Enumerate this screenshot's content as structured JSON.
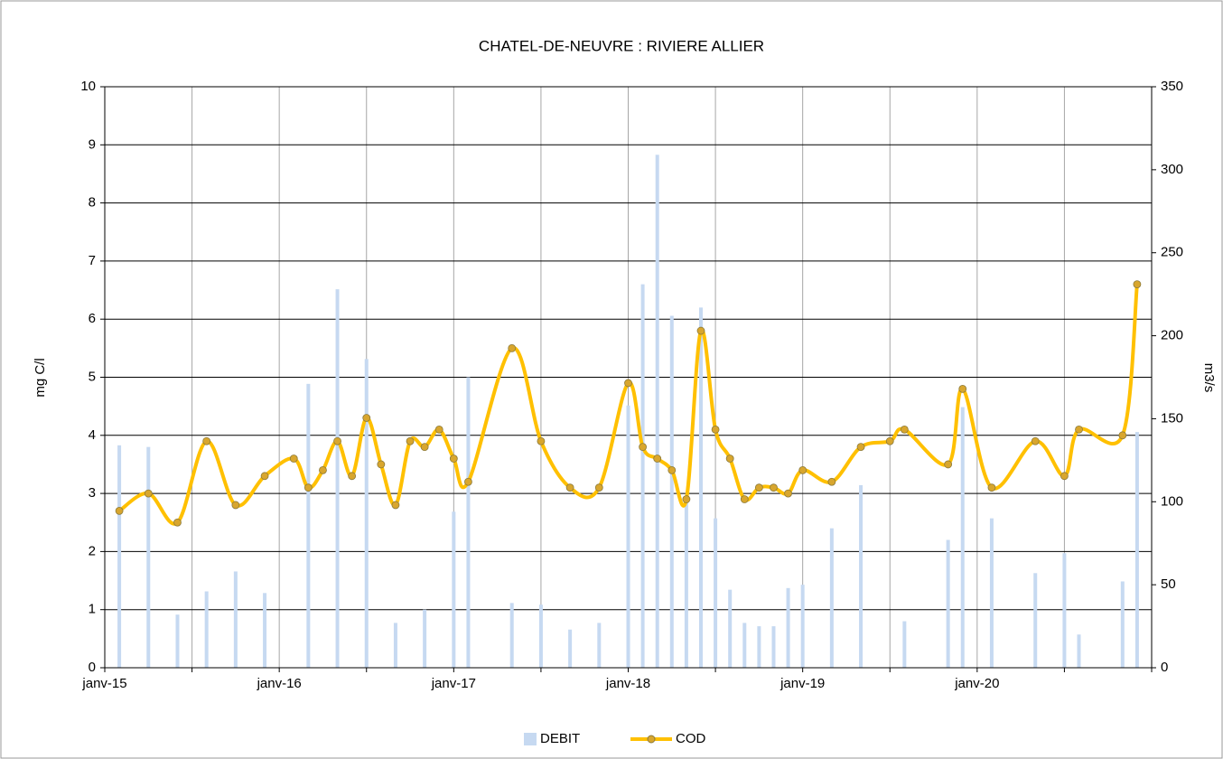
{
  "chart_data": {
    "type": "bar-line",
    "title": "CHATEL-DE-NEUVRE  : RIVIERE  ALLIER",
    "y_label": "mg C/l",
    "y2_label": "m3/s",
    "xlim": [
      "2015-01",
      "2021-01"
    ],
    "xticks": [
      {
        "value": "2015-01",
        "label": "janv-15"
      },
      {
        "value": "2015-07",
        "label": null
      },
      {
        "value": "2016-01",
        "label": "janv-16"
      },
      {
        "value": "2016-07",
        "label": null
      },
      {
        "value": "2017-01",
        "label": "janv-17"
      },
      {
        "value": "2017-07",
        "label": null
      },
      {
        "value": "2018-01",
        "label": "janv-18"
      },
      {
        "value": "2018-07",
        "label": null
      },
      {
        "value": "2019-01",
        "label": "janv-19"
      },
      {
        "value": "2019-07",
        "label": null
      },
      {
        "value": "2020-01",
        "label": "janv-20"
      },
      {
        "value": "2020-07",
        "label": null
      },
      {
        "value": "2021-01",
        "label": null
      }
    ],
    "ylim": [
      0,
      10
    ],
    "yticks": [
      0,
      1,
      2,
      3,
      4,
      5,
      6,
      7,
      8,
      9,
      10
    ],
    "y2lim": [
      0,
      350
    ],
    "y2ticks": [
      0,
      50,
      100,
      150,
      200,
      250,
      300,
      350
    ],
    "grid": true,
    "legend": "bottom",
    "series": [
      {
        "name": "DEBIT",
        "type": "bar",
        "axis": "y2",
        "color": "#c6d9f1",
        "x": [
          "2015-02",
          "2015-04",
          "2015-06",
          "2015-08",
          "2015-10",
          "2015-12",
          "2016-03",
          "2016-05",
          "2016-07",
          "2016-09",
          "2016-11",
          "2017-01",
          "2017-02",
          "2017-05",
          "2017-07",
          "2017-09",
          "2017-11",
          "2018-01",
          "2018-02",
          "2018-03",
          "2018-04",
          "2018-05",
          "2018-06",
          "2018-07",
          "2018-08",
          "2018-09",
          "2018-10",
          "2018-11",
          "2018-12",
          "2019-01",
          "2019-03",
          "2019-05",
          "2019-08",
          "2019-11",
          "2019-12",
          "2020-02",
          "2020-05",
          "2020-07",
          "2020-08",
          "2020-11",
          "2020-12"
        ],
        "values": [
          134,
          133,
          32,
          46,
          58,
          45,
          171,
          228,
          186,
          27,
          35,
          94,
          175,
          39,
          38,
          23,
          27,
          158,
          231,
          309,
          212,
          100,
          217,
          90,
          47,
          27,
          25,
          25,
          48,
          50,
          84,
          110,
          28,
          77,
          157,
          90,
          57,
          69,
          20,
          52,
          142
        ]
      },
      {
        "name": "COD",
        "type": "line",
        "color": "#ffc000",
        "x": [
          "2015-02",
          "2015-04",
          "2015-06",
          "2015-08",
          "2015-10",
          "2015-12",
          "2016-02",
          "2016-03",
          "2016-04",
          "2016-05",
          "2016-06",
          "2016-07",
          "2016-08",
          "2016-09",
          "2016-10",
          "2016-11",
          "2016-12",
          "2017-01",
          "2017-02",
          "2017-05",
          "2017-07",
          "2017-09",
          "2017-11",
          "2018-01",
          "2018-02",
          "2018-03",
          "2018-04",
          "2018-05",
          "2018-06",
          "2018-07",
          "2018-08",
          "2018-09",
          "2018-10",
          "2018-11",
          "2018-12",
          "2019-01",
          "2019-03",
          "2019-05",
          "2019-07",
          "2019-08",
          "2019-11",
          "2019-12",
          "2020-02",
          "2020-05",
          "2020-07",
          "2020-08",
          "2020-11",
          "2020-12"
        ],
        "values": [
          2.7,
          3.0,
          2.5,
          3.9,
          2.8,
          3.3,
          3.6,
          3.1,
          3.4,
          3.9,
          3.3,
          4.3,
          3.5,
          2.8,
          3.9,
          3.8,
          4.1,
          3.6,
          3.2,
          5.5,
          3.9,
          3.1,
          3.1,
          4.9,
          3.8,
          3.6,
          3.4,
          2.9,
          5.8,
          4.1,
          3.6,
          2.9,
          3.1,
          3.1,
          3.0,
          3.4,
          3.2,
          3.8,
          3.9,
          4.1,
          3.5,
          4.8,
          3.1,
          3.9,
          3.3,
          4.1,
          4.0,
          6.6
        ]
      }
    ]
  }
}
